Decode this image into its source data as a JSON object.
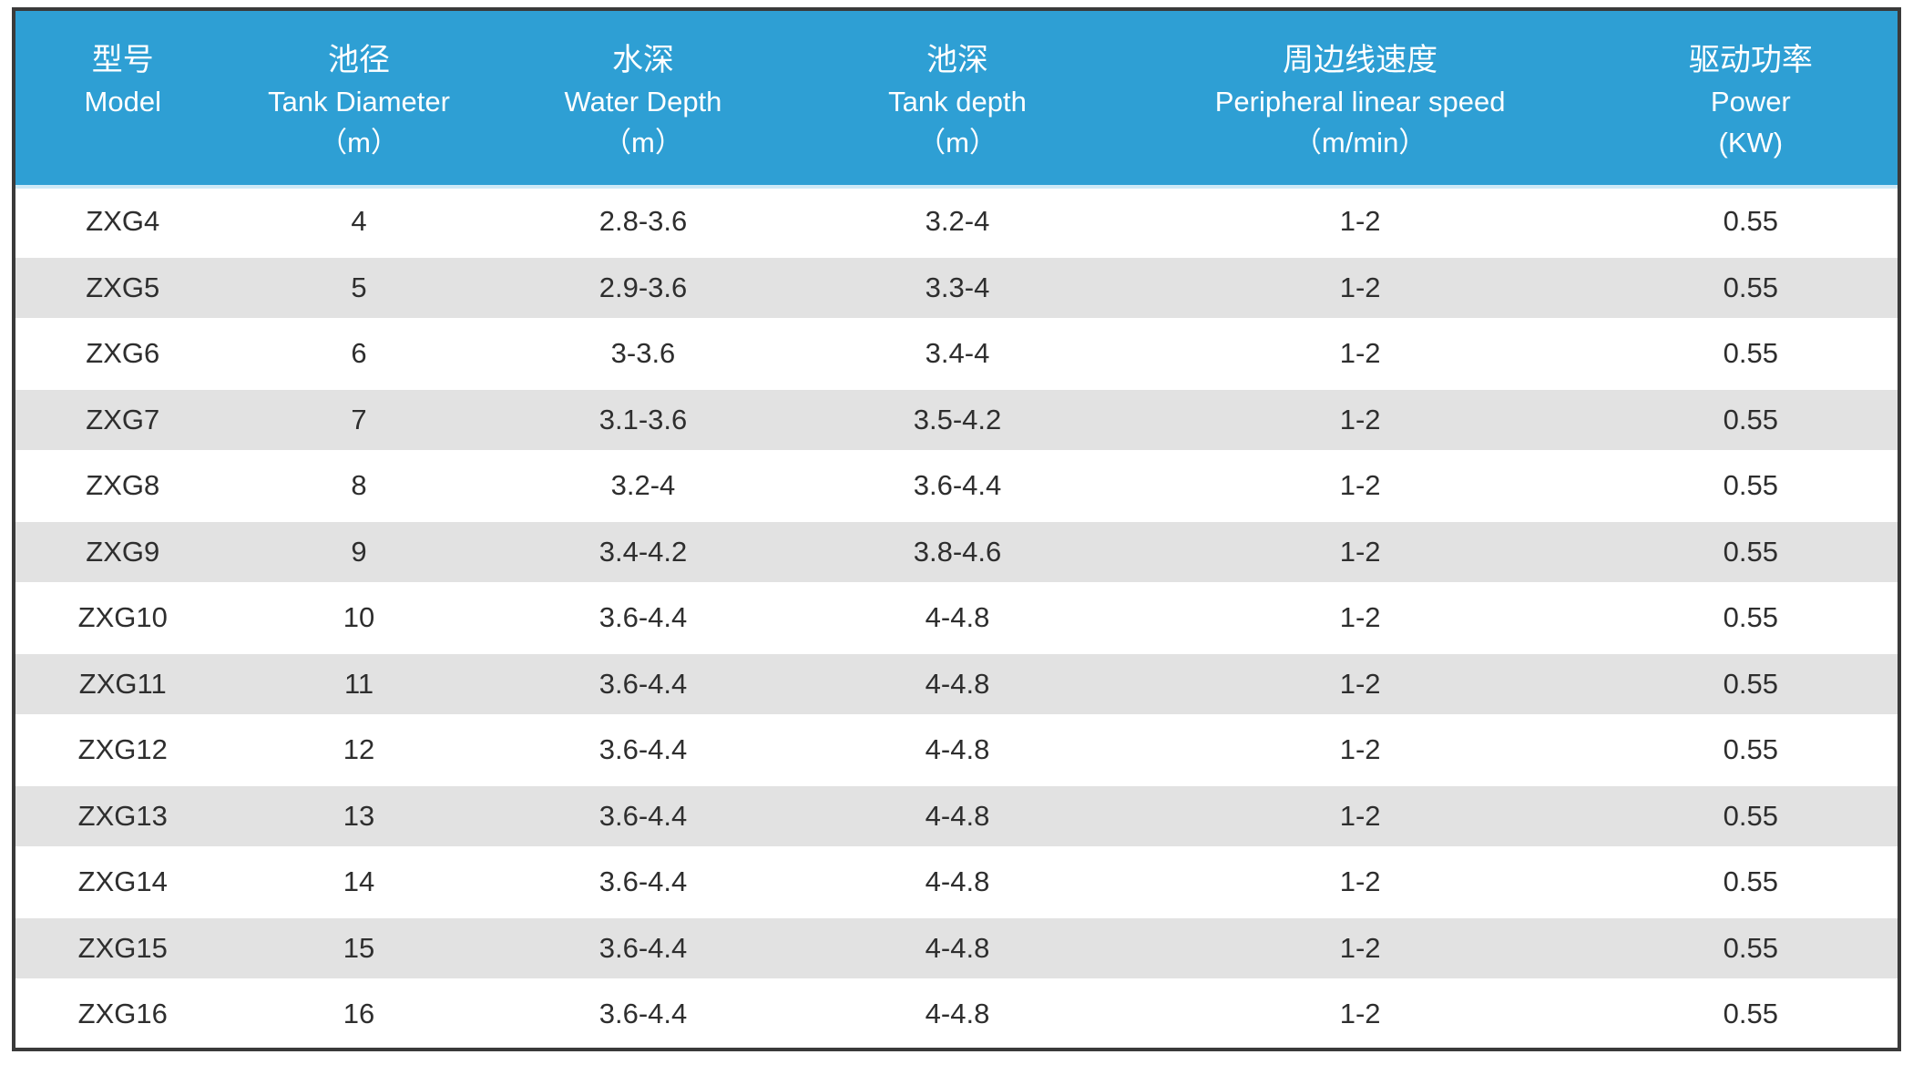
{
  "table": {
    "columns": [
      {
        "zh": "型号",
        "en": "Model",
        "unit": ""
      },
      {
        "zh": "池径",
        "en": "Tank Diameter",
        "unit": "（m）"
      },
      {
        "zh": "水深",
        "en": "Water Depth",
        "unit": "（m）"
      },
      {
        "zh": "池深",
        "en": "Tank depth",
        "unit": "（m）"
      },
      {
        "zh": "周边线速度",
        "en": "Peripheral linear speed",
        "unit": "（m/min）"
      },
      {
        "zh": "驱动功率",
        "en": "Power",
        "unit": "(KW)"
      }
    ],
    "rows": [
      [
        "ZXG4",
        "4",
        "2.8-3.6",
        "3.2-4",
        "1-2",
        "0.55"
      ],
      [
        "ZXG5",
        "5",
        "2.9-3.6",
        "3.3-4",
        "1-2",
        "0.55"
      ],
      [
        "ZXG6",
        "6",
        "3-3.6",
        "3.4-4",
        "1-2",
        "0.55"
      ],
      [
        "ZXG7",
        "7",
        "3.1-3.6",
        "3.5-4.2",
        "1-2",
        "0.55"
      ],
      [
        "ZXG8",
        "8",
        "3.2-4",
        "3.6-4.4",
        "1-2",
        "0.55"
      ],
      [
        "ZXG9",
        "9",
        "3.4-4.2",
        "3.8-4.6",
        "1-2",
        "0.55"
      ],
      [
        "ZXG10",
        "10",
        "3.6-4.4",
        "4-4.8",
        "1-2",
        "0.55"
      ],
      [
        "ZXG11",
        "11",
        "3.6-4.4",
        "4-4.8",
        "1-2",
        "0.55"
      ],
      [
        "ZXG12",
        "12",
        "3.6-4.4",
        "4-4.8",
        "1-2",
        "0.55"
      ],
      [
        "ZXG13",
        "13",
        "3.6-4.4",
        "4-4.8",
        "1-2",
        "0.55"
      ],
      [
        "ZXG14",
        "14",
        "3.6-4.4",
        "4-4.8",
        "1-2",
        "0.55"
      ],
      [
        "ZXG15",
        "15",
        "3.6-4.4",
        "4-4.8",
        "1-2",
        "0.55"
      ],
      [
        "ZXG16",
        "16",
        "3.6-4.4",
        "4-4.8",
        "1-2",
        "0.55"
      ]
    ]
  },
  "colors": {
    "header_bg": "#2e9fd4",
    "header_text": "#ffffff",
    "header_underline": "#cde9f7",
    "row_bg": "#ffffff",
    "row_alt_bg": "#e2e2e2",
    "body_text": "#2e2e2e",
    "border": "#3a3a3a"
  }
}
